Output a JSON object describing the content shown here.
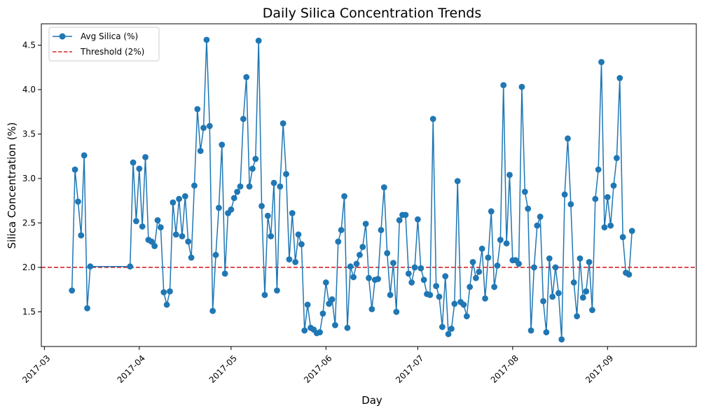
{
  "chart_data": {
    "type": "line",
    "title": "Daily Silica Concentration Trends",
    "xlabel": "Day",
    "ylabel": "Silica Concentration (%)",
    "x_axis_type": "date",
    "xlim": [
      "2017-02-28",
      "2017-09-30"
    ],
    "ylim": [
      1.11,
      4.74
    ],
    "x_ticks": [
      "2017-03",
      "2017-04",
      "2017-05",
      "2017-06",
      "2017-07",
      "2017-08",
      "2017-09"
    ],
    "y_ticks": [
      "1.5",
      "2.0",
      "2.5",
      "3.0",
      "3.5",
      "4.0",
      "4.5"
    ],
    "grid": false,
    "legend": {
      "placement": "upper-left"
    },
    "colors": {
      "series": "#1f77b4",
      "threshold": "#d62728"
    },
    "series": [
      {
        "name": "Avg Silica (%)",
        "marker": "circle",
        "x": [
          "2017-03-10",
          "2017-03-11",
          "2017-03-12",
          "2017-03-13",
          "2017-03-14",
          "2017-03-15",
          "2017-03-16",
          "2017-03-29",
          "2017-03-30",
          "2017-03-31",
          "2017-04-01",
          "2017-04-02",
          "2017-04-03",
          "2017-04-04",
          "2017-04-05",
          "2017-04-06",
          "2017-04-07",
          "2017-04-08",
          "2017-04-09",
          "2017-04-10",
          "2017-04-11",
          "2017-04-12",
          "2017-04-13",
          "2017-04-14",
          "2017-04-15",
          "2017-04-16",
          "2017-04-17",
          "2017-04-18",
          "2017-04-19",
          "2017-04-20",
          "2017-04-21",
          "2017-04-22",
          "2017-04-23",
          "2017-04-24",
          "2017-04-25",
          "2017-04-26",
          "2017-04-27",
          "2017-04-28",
          "2017-04-29",
          "2017-04-30",
          "2017-05-01",
          "2017-05-02",
          "2017-05-03",
          "2017-05-04",
          "2017-05-05",
          "2017-05-06",
          "2017-05-07",
          "2017-05-08",
          "2017-05-09",
          "2017-05-10",
          "2017-05-11",
          "2017-05-12",
          "2017-05-13",
          "2017-05-14",
          "2017-05-15",
          "2017-05-16",
          "2017-05-17",
          "2017-05-18",
          "2017-05-19",
          "2017-05-20",
          "2017-05-21",
          "2017-05-22",
          "2017-05-23",
          "2017-05-24",
          "2017-05-25",
          "2017-05-26",
          "2017-05-27",
          "2017-05-28",
          "2017-05-29",
          "2017-05-30",
          "2017-05-31",
          "2017-06-01",
          "2017-06-02",
          "2017-06-03",
          "2017-06-04",
          "2017-06-05",
          "2017-06-06",
          "2017-06-07",
          "2017-06-08",
          "2017-06-09",
          "2017-06-10",
          "2017-06-11",
          "2017-06-12",
          "2017-06-13",
          "2017-06-14",
          "2017-06-15",
          "2017-06-16",
          "2017-06-17",
          "2017-06-18",
          "2017-06-19",
          "2017-06-20",
          "2017-06-21",
          "2017-06-22",
          "2017-06-23",
          "2017-06-24",
          "2017-06-25",
          "2017-06-26",
          "2017-06-27",
          "2017-06-28",
          "2017-06-29",
          "2017-06-30",
          "2017-07-01",
          "2017-07-02",
          "2017-07-03",
          "2017-07-04",
          "2017-07-05",
          "2017-07-06",
          "2017-07-07",
          "2017-07-08",
          "2017-07-09",
          "2017-07-10",
          "2017-07-11",
          "2017-07-12",
          "2017-07-13",
          "2017-07-14",
          "2017-07-15",
          "2017-07-16",
          "2017-07-17",
          "2017-07-18",
          "2017-07-19",
          "2017-07-20",
          "2017-07-21",
          "2017-07-22",
          "2017-07-23",
          "2017-07-24",
          "2017-07-25",
          "2017-07-26",
          "2017-07-27",
          "2017-07-28",
          "2017-07-29",
          "2017-07-30",
          "2017-07-31",
          "2017-08-01",
          "2017-08-02",
          "2017-08-03",
          "2017-08-04",
          "2017-08-05",
          "2017-08-06",
          "2017-08-07",
          "2017-08-08",
          "2017-08-09",
          "2017-08-10",
          "2017-08-11",
          "2017-08-12",
          "2017-08-13",
          "2017-08-14",
          "2017-08-15",
          "2017-08-16",
          "2017-08-17",
          "2017-08-18",
          "2017-08-19",
          "2017-08-20",
          "2017-08-21",
          "2017-08-22",
          "2017-08-23",
          "2017-08-24",
          "2017-08-25",
          "2017-08-26",
          "2017-08-27",
          "2017-08-28",
          "2017-08-29",
          "2017-08-30",
          "2017-08-31",
          "2017-09-01",
          "2017-09-02",
          "2017-09-03",
          "2017-09-04",
          "2017-09-05",
          "2017-09-06",
          "2017-09-07",
          "2017-09-08",
          "2017-09-09"
        ],
        "values": [
          1.74,
          3.1,
          2.74,
          2.36,
          3.26,
          1.54,
          2.01,
          2.01,
          3.18,
          2.52,
          3.11,
          2.46,
          3.24,
          2.31,
          2.29,
          2.24,
          2.53,
          2.45,
          1.72,
          1.58,
          1.73,
          2.73,
          2.37,
          2.77,
          2.35,
          2.8,
          2.29,
          2.11,
          2.92,
          3.78,
          3.31,
          3.57,
          4.56,
          3.59,
          1.51,
          2.14,
          2.67,
          3.38,
          1.93,
          2.61,
          2.65,
          2.78,
          2.85,
          2.91,
          3.67,
          4.14,
          2.91,
          3.11,
          3.22,
          4.55,
          2.69,
          1.69,
          2.58,
          2.35,
          2.95,
          1.74,
          2.91,
          3.62,
          3.05,
          2.09,
          2.61,
          2.06,
          2.37,
          2.26,
          1.29,
          1.58,
          1.32,
          1.3,
          1.26,
          1.27,
          1.48,
          1.83,
          1.59,
          1.64,
          1.35,
          2.29,
          2.42,
          2.8,
          1.32,
          2.01,
          1.89,
          2.04,
          2.14,
          2.23,
          2.49,
          1.88,
          1.53,
          1.86,
          1.87,
          2.42,
          2.9,
          2.16,
          1.69,
          2.05,
          1.5,
          2.53,
          2.59,
          2.59,
          1.93,
          1.83,
          2.0,
          2.54,
          1.99,
          1.86,
          1.7,
          1.69,
          3.67,
          1.79,
          1.67,
          1.33,
          1.9,
          1.25,
          1.31,
          1.59,
          2.97,
          1.61,
          1.58,
          1.45,
          1.78,
          2.06,
          1.88,
          1.95,
          2.21,
          1.65,
          2.11,
          2.63,
          1.78,
          2.02,
          2.31,
          4.05,
          2.27,
          3.04,
          2.08,
          2.08,
          2.04,
          4.03,
          2.85,
          2.66,
          1.29,
          2.0,
          2.47,
          2.57,
          1.62,
          1.27,
          2.1,
          1.67,
          2.0,
          1.71,
          1.19,
          2.82,
          3.45,
          2.71,
          1.83,
          1.45,
          2.1,
          1.66,
          1.73,
          2.06,
          1.52,
          2.77,
          3.1,
          4.31,
          2.45,
          2.79,
          2.47,
          2.92,
          3.23,
          4.13,
          2.34,
          1.94,
          1.92,
          2.41
        ]
      },
      {
        "name": "Threshold (2%)",
        "type": "hline",
        "y": 2.0,
        "style": "dashed"
      }
    ]
  }
}
